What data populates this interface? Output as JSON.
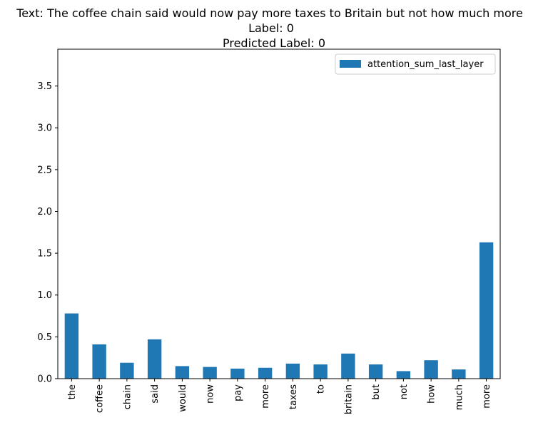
{
  "chart_data": {
    "type": "bar",
    "title": [
      "Text: The coffee chain said would now pay more taxes to Britain but not how much more",
      "Label: 0",
      "Predicted Label: 0"
    ],
    "categories": [
      "the",
      "coffee",
      "chain",
      "said",
      "would",
      "now",
      "pay",
      "more",
      "taxes",
      "to",
      "britain",
      "but",
      "not",
      "how",
      "much",
      "more"
    ],
    "series": [
      {
        "name": "attention_sum_last_layer",
        "color": "#1f77b4",
        "values": [
          0.78,
          0.41,
          0.19,
          0.47,
          0.15,
          0.14,
          0.12,
          0.13,
          0.18,
          0.17,
          0.3,
          0.17,
          0.09,
          0.22,
          0.11,
          1.63
        ]
      }
    ],
    "xlabel": "",
    "ylabel": "",
    "ylim": [
      0,
      3.94
    ],
    "yticks": [
      "0.0",
      "0.5",
      "1.0",
      "1.5",
      "2.0",
      "2.5",
      "3.0",
      "3.5"
    ],
    "grid": false,
    "legend_position": "top-right"
  }
}
